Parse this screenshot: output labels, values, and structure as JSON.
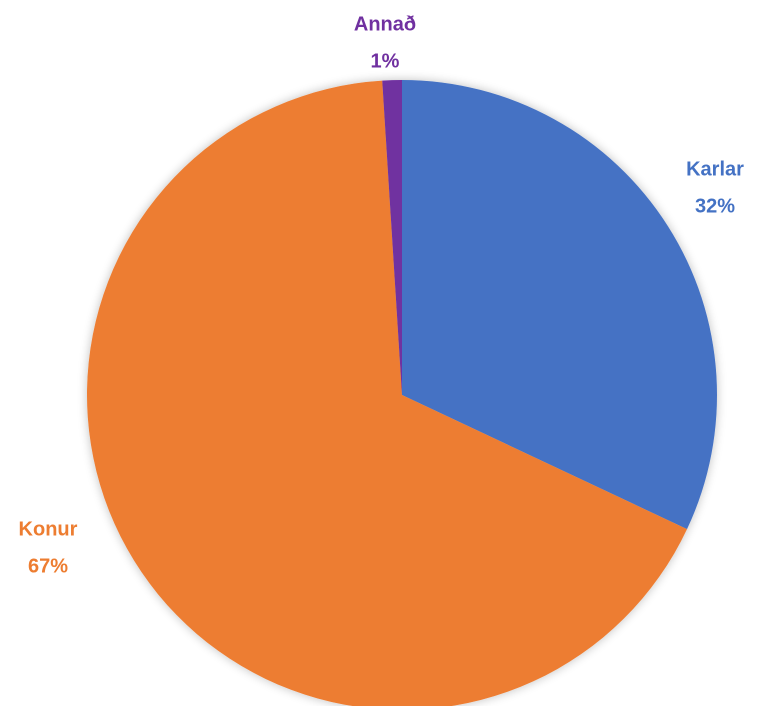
{
  "chart_data": {
    "type": "pie",
    "categories": [
      "Karlar",
      "Konur",
      "Annað"
    ],
    "values": [
      32,
      67,
      1
    ],
    "value_labels": [
      "32%",
      "67%",
      "1%"
    ],
    "colors": [
      "#4472c4",
      "#ed7d31",
      "#7030a0"
    ]
  }
}
